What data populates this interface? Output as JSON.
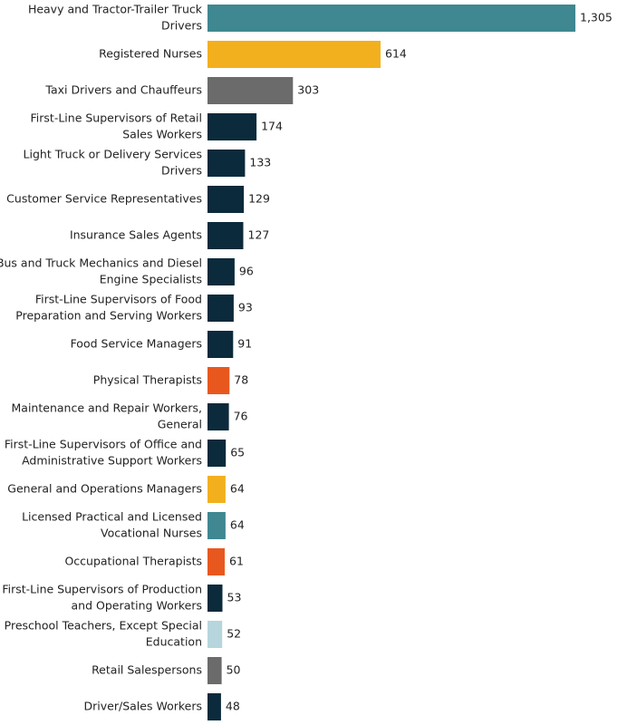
{
  "chart_data": {
    "type": "bar",
    "orientation": "horizontal",
    "title": "",
    "xlabel": "",
    "ylabel": "",
    "grid": false,
    "categories": [
      [
        "Heavy and Tractor-Trailer Truck",
        "Drivers"
      ],
      [
        "Registered Nurses"
      ],
      [
        "Taxi Drivers and Chauffeurs"
      ],
      [
        "First-Line Supervisors of Retail",
        "Sales Workers"
      ],
      [
        "Light Truck or Delivery Services",
        "Drivers"
      ],
      [
        "Customer Service Representatives"
      ],
      [
        "Insurance Sales Agents"
      ],
      [
        "Bus and Truck Mechanics and Diesel",
        "Engine Specialists"
      ],
      [
        "First-Line Supervisors of Food",
        "Preparation and Serving Workers"
      ],
      [
        "Food Service Managers"
      ],
      [
        "Physical Therapists"
      ],
      [
        "Maintenance and Repair Workers,",
        "General"
      ],
      [
        "First-Line Supervisors of Office and",
        "Administrative Support Workers"
      ],
      [
        "General and Operations Managers"
      ],
      [
        "Licensed Practical and Licensed",
        "Vocational Nurses"
      ],
      [
        "Occupational Therapists"
      ],
      [
        "First-Line Supervisors of Production",
        "and Operating Workers"
      ],
      [
        "Preschool Teachers, Except Special",
        "Education"
      ],
      [
        "Retail Salespersons"
      ],
      [
        "Driver/Sales Workers"
      ]
    ],
    "values": [
      1305,
      614,
      303,
      174,
      133,
      129,
      127,
      96,
      93,
      91,
      78,
      76,
      65,
      64,
      64,
      61,
      53,
      52,
      50,
      48
    ],
    "value_labels": [
      "1,305",
      "614",
      "303",
      "174",
      "133",
      "129",
      "127",
      "96",
      "93",
      "91",
      "78",
      "76",
      "65",
      "64",
      "64",
      "61",
      "53",
      "52",
      "50",
      "48"
    ],
    "colors": [
      "#3f8791",
      "#f2b01e",
      "#6b6b6b",
      "#0b2a3b",
      "#0b2a3b",
      "#0b2a3b",
      "#0b2a3b",
      "#0b2a3b",
      "#0b2a3b",
      "#0b2a3b",
      "#e8581e",
      "#0b2a3b",
      "#0b2a3b",
      "#f2b01e",
      "#3f8791",
      "#e8581e",
      "#0b2a3b",
      "#b6d5dd",
      "#6b6b6b",
      "#0b2a3b"
    ],
    "xlim": [
      0,
      1305
    ]
  }
}
